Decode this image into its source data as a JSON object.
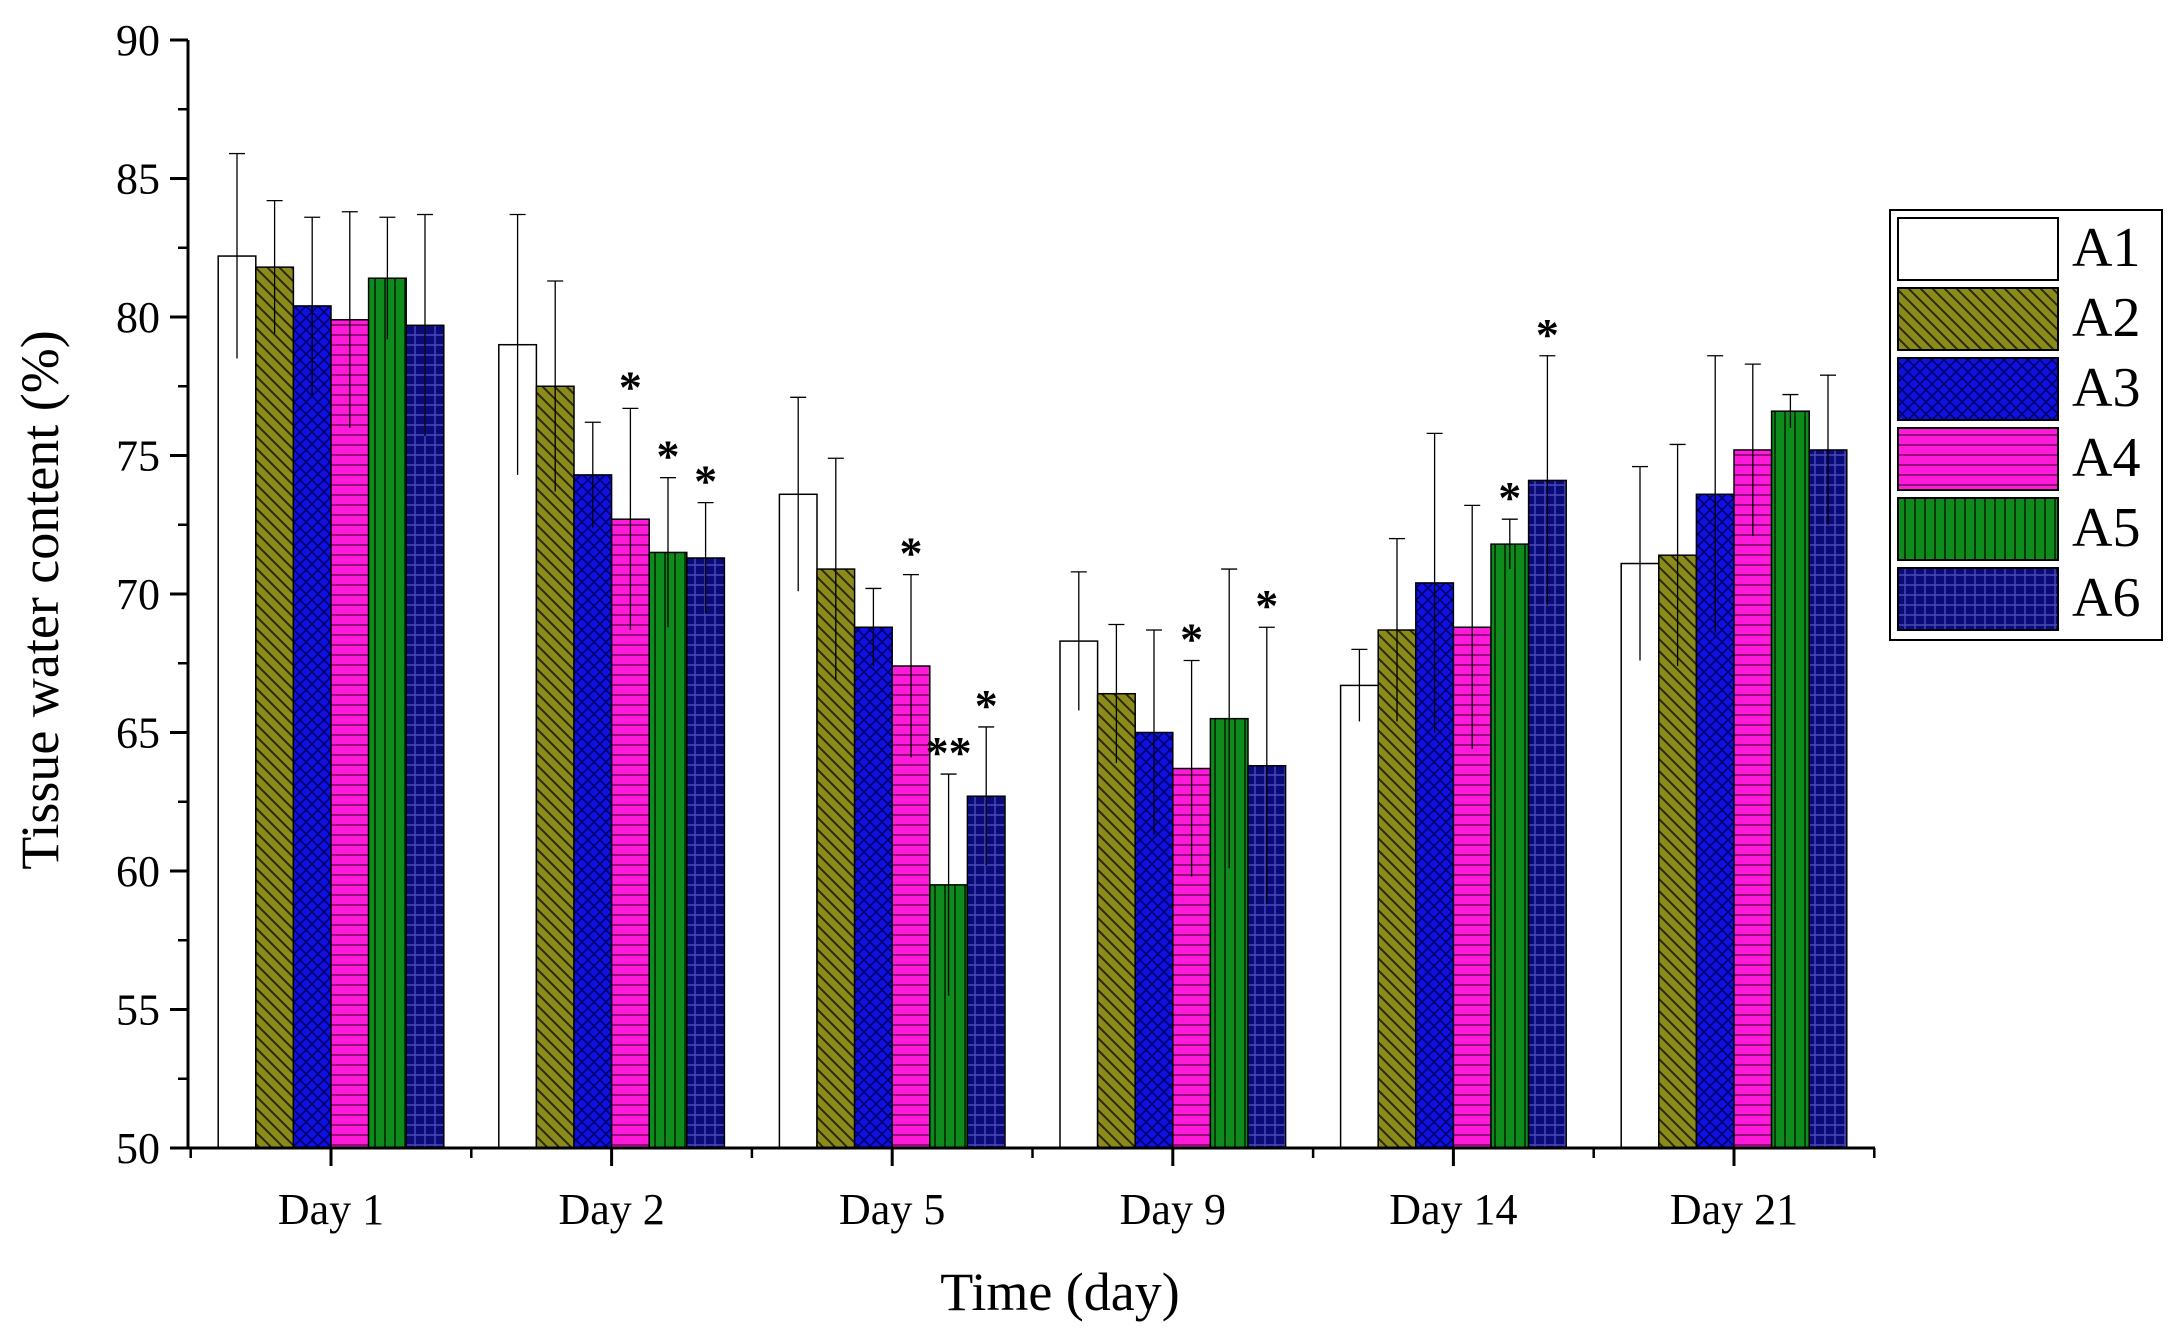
{
  "chart_data": {
    "type": "bar",
    "title": "",
    "xlabel": "Time (day)",
    "ylabel": "Tissue water content (%)",
    "ylim": [
      50,
      90
    ],
    "yticks": [
      50,
      55,
      60,
      65,
      70,
      75,
      80,
      85,
      90
    ],
    "categories": [
      "Day 1",
      "Day 2",
      "Day 5",
      "Day 9",
      "Day 14",
      "Day 21"
    ],
    "legend_position": "right",
    "series": [
      {
        "name": "A1",
        "color": "#ffffff",
        "pattern": "none",
        "values": [
          82.2,
          79.0,
          73.6,
          68.3,
          66.7,
          71.1
        ],
        "errors": [
          3.7,
          4.7,
          3.5,
          2.5,
          1.3,
          3.5
        ],
        "marks": [
          "",
          "",
          "",
          "",
          "",
          ""
        ]
      },
      {
        "name": "A2",
        "color": "#8b8b1c",
        "pattern": "diag",
        "values": [
          81.8,
          77.5,
          70.9,
          66.4,
          68.7,
          71.4
        ],
        "errors": [
          2.4,
          3.8,
          4.0,
          2.5,
          3.3,
          4.0
        ],
        "marks": [
          "",
          "",
          "",
          "",
          "",
          ""
        ]
      },
      {
        "name": "A3",
        "color": "#1010e0",
        "pattern": "cross",
        "values": [
          80.4,
          74.3,
          68.8,
          65.0,
          70.4,
          73.6
        ],
        "errors": [
          3.2,
          1.9,
          1.4,
          3.7,
          5.4,
          5.0
        ],
        "marks": [
          "",
          "",
          "",
          "",
          "",
          ""
        ]
      },
      {
        "name": "A4",
        "color": "#ff1ad9",
        "pattern": "hlines",
        "values": [
          79.9,
          72.7,
          67.4,
          63.7,
          68.8,
          75.2
        ],
        "errors": [
          3.9,
          4.0,
          3.3,
          3.9,
          4.4,
          3.1
        ],
        "marks": [
          "",
          "*",
          "*",
          "*",
          "",
          ""
        ]
      },
      {
        "name": "A5",
        "color": "#0f8a1c",
        "pattern": "vlines",
        "values": [
          81.4,
          71.5,
          59.5,
          65.5,
          71.8,
          76.6
        ],
        "errors": [
          2.2,
          2.7,
          4.0,
          5.4,
          0.9,
          0.6
        ],
        "marks": [
          "",
          "*",
          "**",
          "",
          "*",
          ""
        ]
      },
      {
        "name": "A6",
        "color": "#0a0a78",
        "pattern": "grid",
        "values": [
          79.7,
          71.3,
          62.7,
          63.8,
          74.1,
          75.2
        ],
        "errors": [
          4.0,
          2.0,
          2.5,
          5.0,
          4.5,
          2.7
        ],
        "marks": [
          "",
          "*",
          "*",
          "*",
          "*",
          ""
        ]
      }
    ]
  }
}
